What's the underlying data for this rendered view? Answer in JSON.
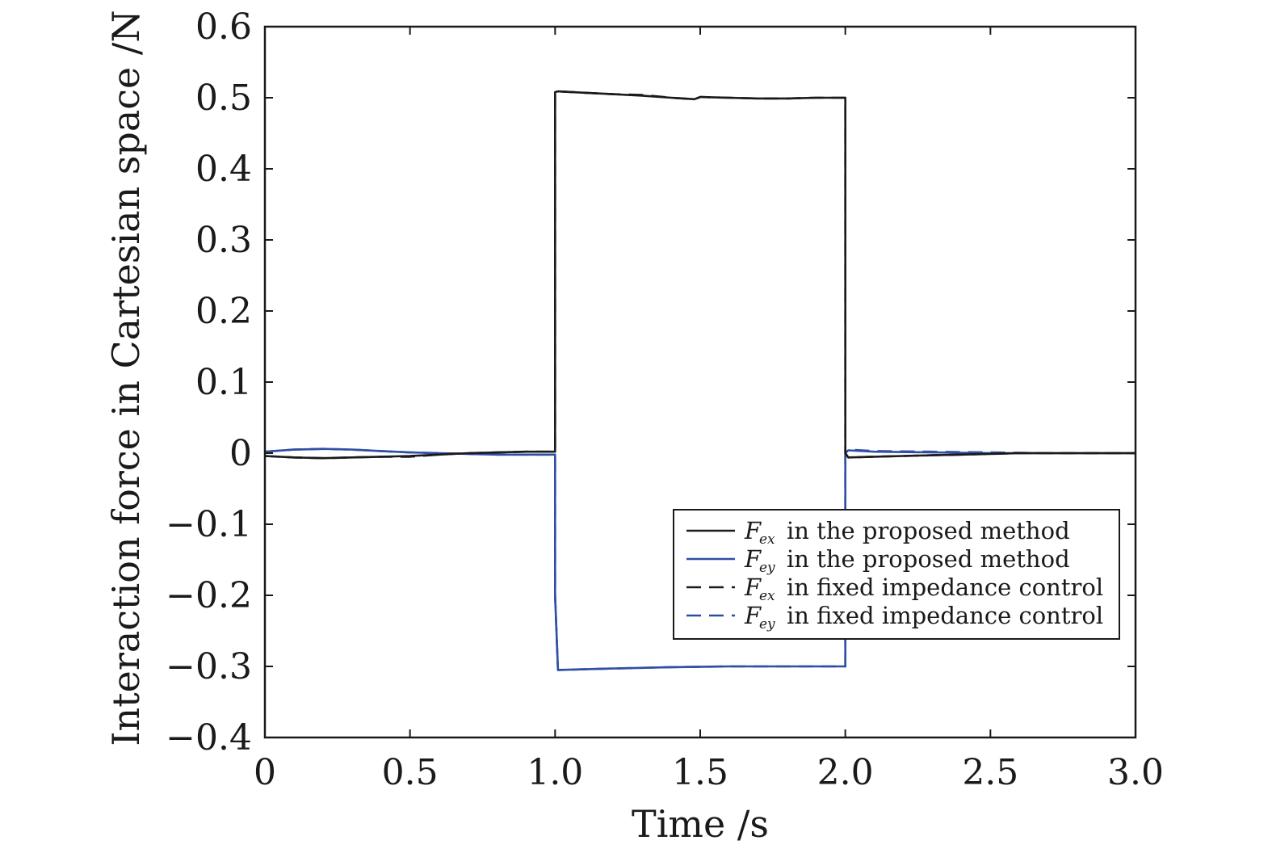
{
  "chart_data": {
    "type": "line",
    "xlabel": "Time /s",
    "ylabel": "Interaction force in Cartesian space /N",
    "xlim": [
      0,
      3
    ],
    "ylim": [
      -0.4,
      0.6
    ],
    "xticks": [
      0,
      0.5,
      1.0,
      1.5,
      2.0,
      2.5,
      3.0
    ],
    "xtick_labels": [
      "0",
      "0.5",
      "1.0",
      "1.5",
      "2.0",
      "2.5",
      "3.0"
    ],
    "yticks": [
      -0.4,
      -0.3,
      -0.2,
      -0.1,
      0,
      0.1,
      0.2,
      0.3,
      0.4,
      0.5,
      0.6
    ],
    "ytick_labels": [
      "−0.4",
      "−0.3",
      "−0.2",
      "−0.1",
      "0",
      "0.1",
      "0.2",
      "0.3",
      "0.4",
      "0.5",
      "0.6"
    ],
    "grid": false,
    "legend_position": "lower-right",
    "series": [
      {
        "name": "F_ex in the proposed method",
        "symbol": "F",
        "subscript": "ex",
        "suffix": "in the proposed method",
        "color": "#1a1a1a",
        "dash": "solid",
        "x": [
          0,
          0.1,
          0.2,
          0.3,
          0.4,
          0.5,
          0.6,
          0.7,
          0.8,
          0.9,
          1.0,
          1.0,
          1.01,
          1.1,
          1.2,
          1.3,
          1.4,
          1.48,
          1.5,
          1.6,
          1.7,
          1.8,
          1.9,
          2.0,
          2.0,
          2.01,
          2.1,
          2.2,
          2.3,
          2.4,
          2.5,
          2.6,
          2.8,
          3.0
        ],
        "y": [
          -0.004,
          -0.006,
          -0.007,
          -0.006,
          -0.005,
          -0.004,
          -0.002,
          0.0,
          0.001,
          0.002,
          0.002,
          0.508,
          0.509,
          0.507,
          0.505,
          0.503,
          0.5,
          0.498,
          0.501,
          0.5,
          0.499,
          0.499,
          0.5,
          0.5,
          0.0,
          -0.006,
          -0.005,
          -0.004,
          -0.003,
          -0.002,
          -0.001,
          0.0,
          0.0,
          0.0
        ]
      },
      {
        "name": "F_ey in the proposed method",
        "symbol": "F",
        "subscript": "ey",
        "suffix": "in the proposed method",
        "color": "#2e4fa3",
        "dash": "solid",
        "x": [
          0,
          0.1,
          0.2,
          0.3,
          0.4,
          0.5,
          0.6,
          0.7,
          0.8,
          0.9,
          1.0,
          1.0,
          1.01,
          1.2,
          1.4,
          1.6,
          1.8,
          2.0,
          2.0,
          2.01,
          2.1,
          2.3,
          2.5,
          2.7,
          3.0
        ],
        "y": [
          0.002,
          0.005,
          0.006,
          0.005,
          0.003,
          0.001,
          0.0,
          -0.001,
          -0.002,
          -0.002,
          -0.002,
          -0.2,
          -0.305,
          -0.303,
          -0.301,
          -0.3,
          -0.3,
          -0.3,
          0.0,
          0.004,
          0.002,
          0.001,
          0.0,
          0.0,
          0.0
        ]
      },
      {
        "name": "F_ex in fixed impedance control",
        "symbol": "F",
        "subscript": "ex",
        "suffix": "in fixed impedance control",
        "color": "#1a1a1a",
        "dash": "dashed",
        "x": [
          0,
          0.1,
          0.2,
          0.3,
          0.4,
          0.5,
          0.6,
          0.7,
          0.8,
          0.9,
          1.0,
          1.0,
          1.01,
          1.1,
          1.2,
          1.3,
          1.4,
          1.48,
          1.5,
          1.6,
          1.7,
          1.8,
          1.9,
          2.0,
          2.0,
          2.01,
          2.1,
          2.2,
          2.3,
          2.4,
          2.5,
          2.6,
          2.8,
          3.0
        ],
        "y": [
          -0.004,
          -0.006,
          -0.007,
          -0.006,
          -0.005,
          -0.005,
          -0.002,
          0.0,
          0.001,
          0.002,
          0.002,
          0.508,
          0.509,
          0.507,
          0.505,
          0.504,
          0.5,
          0.498,
          0.501,
          0.5,
          0.499,
          0.499,
          0.5,
          0.5,
          0.0,
          -0.006,
          -0.005,
          -0.004,
          -0.003,
          -0.002,
          -0.001,
          0.0,
          0.0,
          0.0
        ]
      },
      {
        "name": "F_ey in fixed impedance control",
        "symbol": "F",
        "subscript": "ey",
        "suffix": "in fixed impedance control",
        "color": "#2e4fa3",
        "dash": "dashed",
        "x": [
          0,
          0.1,
          0.2,
          0.3,
          0.4,
          0.5,
          0.6,
          0.7,
          0.8,
          0.9,
          1.0,
          1.0,
          1.01,
          1.2,
          1.4,
          1.6,
          1.8,
          2.0,
          2.0,
          2.01,
          2.1,
          2.3,
          2.5,
          2.7,
          3.0
        ],
        "y": [
          0.002,
          0.005,
          0.006,
          0.005,
          0.003,
          0.001,
          0.0,
          -0.001,
          -0.002,
          -0.002,
          -0.002,
          -0.2,
          -0.305,
          -0.303,
          -0.301,
          -0.3,
          -0.3,
          -0.3,
          0.0,
          0.005,
          0.003,
          0.002,
          0.001,
          0.0,
          0.0
        ]
      }
    ]
  }
}
